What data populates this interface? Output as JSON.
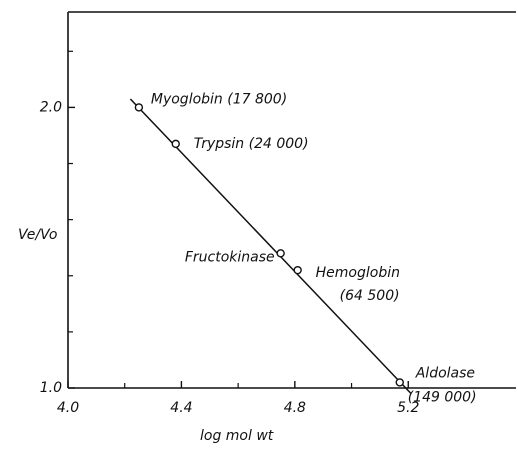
{
  "chart_data": {
    "type": "scatter",
    "x_label": "log mol  wt",
    "y_label": "Ve/Vo",
    "xlim": [
      4.0,
      5.58
    ],
    "ylim": [
      1.0,
      2.34
    ],
    "xticks": [
      {
        "value": 4.0,
        "label": "4.0"
      },
      {
        "value": 4.4,
        "label": "4.4"
      },
      {
        "value": 4.8,
        "label": "4.8"
      },
      {
        "value": 5.2,
        "label": "5.2"
      }
    ],
    "yticks": [
      {
        "value": 1.0,
        "label": "1.0"
      },
      {
        "value": 2.0,
        "label": "2.0"
      }
    ],
    "y_minor_ticks": [
      1.2,
      1.4,
      1.6,
      1.8,
      2.2
    ],
    "x_minor_ticks": [
      4.2,
      4.6,
      5.0
    ],
    "color": "#111111",
    "series": [
      {
        "x": [
          4.25,
          4.38,
          4.75,
          4.81,
          5.17
        ],
        "values": [
          2.0,
          1.87,
          1.48,
          1.42,
          1.02
        ],
        "point_labels": [
          [
            "Myoglobin (17 800)"
          ],
          [
            "Trypsin (24 000)"
          ],
          [
            "Fructokinase"
          ],
          [
            "Hemoglobin",
            "(64 500)"
          ],
          [
            "Aldolase",
            "(149 000)"
          ]
        ]
      }
    ],
    "fit_line": {
      "x": [
        4.22,
        5.21
      ],
      "values": [
        2.03,
        0.98
      ]
    }
  }
}
